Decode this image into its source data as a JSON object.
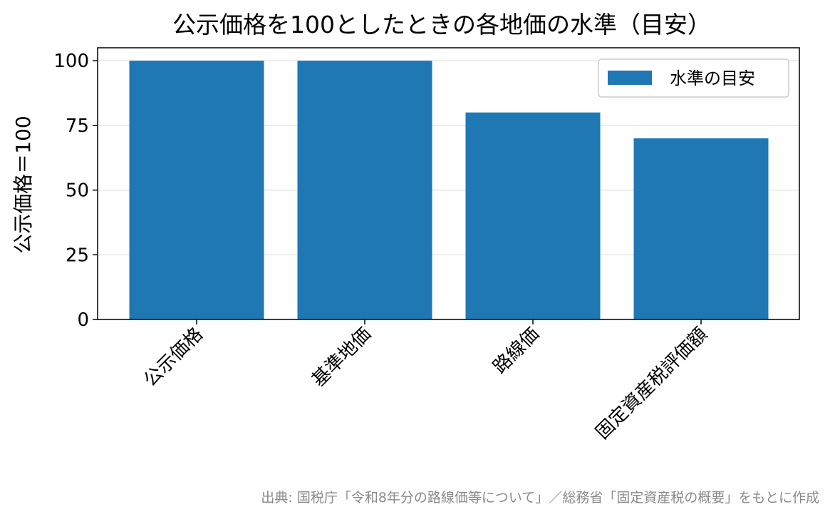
{
  "chart_data": {
    "type": "bar",
    "title": "公示価格を100としたときの各地価の水準（目安）",
    "xlabel": "",
    "ylabel": "公示価格＝100",
    "categories": [
      "公示価格",
      "基準地価",
      "路線価",
      "固定資産税評価額"
    ],
    "series": [
      {
        "name": "水準の目安",
        "values": [
          100,
          100,
          80,
          70
        ],
        "color": "#1f77b4"
      }
    ],
    "ylim": [
      0,
      105
    ],
    "yticks": [
      0,
      25,
      50,
      75,
      100
    ],
    "grid": true,
    "legend": "top-right"
  },
  "source_note": "出典: 国税庁「令和8年分の路線価等について」／総務省「固定資産税の概要」をもとに作成"
}
